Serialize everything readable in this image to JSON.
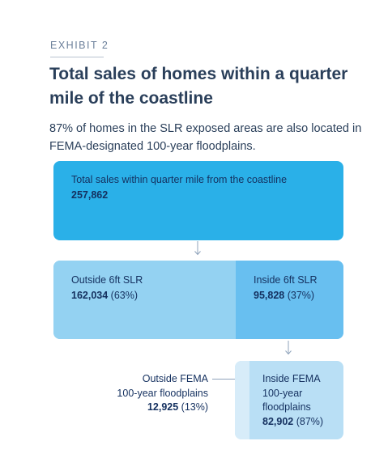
{
  "header": {
    "exhibit": "EXHIBIT 2",
    "title": "Total sales of homes within a quarter mile of the coastline",
    "subtitle": "87% of homes in the SLR exposed areas are also located in FEMA-designated 100-year floodplains."
  },
  "diagram": {
    "total": {
      "label": "Total sales within quarter mile from the coastline",
      "value": "257,862"
    },
    "outside_slr": {
      "label": "Outside 6ft SLR",
      "value": "162,034",
      "pct": "(63%)"
    },
    "inside_slr": {
      "label": "Inside 6ft SLR",
      "value": "95,828",
      "pct": "(37%)"
    },
    "outside_fema": {
      "label_line1": "Outside FEMA",
      "label_line2": "100-year floodplains",
      "value": "12,925",
      "pct": "(13%)"
    },
    "inside_fema": {
      "label_line1": "Inside FEMA",
      "label_line2": "100-year",
      "label_line3": "floodplains",
      "value": "82,902",
      "pct": "(87%)"
    }
  },
  "colors": {
    "total_box": "#2ab0e8",
    "outside_slr": "#94d2f2",
    "inside_slr": "#68bff0",
    "inside_fema": "#b9dff5",
    "fema_strip": "#d7ecf9",
    "text": "#14305f"
  }
}
